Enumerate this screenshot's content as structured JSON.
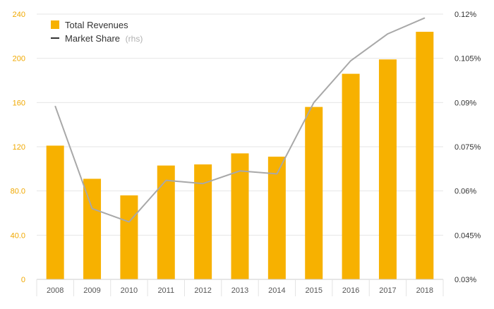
{
  "chart_data": {
    "type": "bar",
    "categories": [
      "2008",
      "2009",
      "2010",
      "2011",
      "2012",
      "2013",
      "2014",
      "2015",
      "2016",
      "2017",
      "2018"
    ],
    "series": [
      {
        "name": "Total Revenues",
        "type": "bar",
        "axis": "left",
        "color": "#f7b100",
        "values": [
          121,
          91,
          76,
          103,
          104,
          114,
          111,
          156,
          186,
          199,
          224
        ]
      },
      {
        "name": "Market Share",
        "name_suffix": "(rhs)",
        "type": "line",
        "axis": "right",
        "color": "#a8a8a8",
        "values": [
          0.0888,
          0.054,
          0.0495,
          0.0636,
          0.0625,
          0.0668,
          0.0658,
          0.09,
          0.1042,
          0.1133,
          0.1187
        ]
      }
    ],
    "y_left": {
      "range": [
        0,
        240
      ],
      "ticks": [
        0,
        40,
        80,
        120,
        160,
        200,
        240
      ],
      "tick_labels": [
        "0",
        "40.0",
        "80.0",
        "120",
        "160",
        "200",
        "240"
      ],
      "tick_color": "#f0a800"
    },
    "y_right": {
      "range": [
        0.03,
        0.12
      ],
      "ticks": [
        0.03,
        0.045,
        0.06,
        0.075,
        0.09,
        0.105,
        0.12
      ],
      "tick_labels": [
        "0.03%",
        "0.045%",
        "0.06%",
        "0.075%",
        "0.09%",
        "0.105%",
        "0.12%"
      ],
      "tick_color": "#333333"
    },
    "grid": true,
    "legend_position": "top-left",
    "title": "",
    "xlabel": "",
    "ylabel": ""
  }
}
